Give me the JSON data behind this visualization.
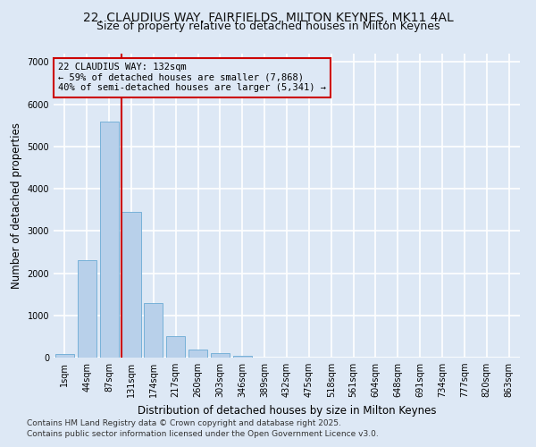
{
  "title_line1": "22, CLAUDIUS WAY, FAIRFIELDS, MILTON KEYNES, MK11 4AL",
  "title_line2": "Size of property relative to detached houses in Milton Keynes",
  "xlabel": "Distribution of detached houses by size in Milton Keynes",
  "ylabel": "Number of detached properties",
  "categories": [
    "1sqm",
    "44sqm",
    "87sqm",
    "131sqm",
    "174sqm",
    "217sqm",
    "260sqm",
    "303sqm",
    "346sqm",
    "389sqm",
    "432sqm",
    "475sqm",
    "518sqm",
    "561sqm",
    "604sqm",
    "648sqm",
    "691sqm",
    "734sqm",
    "777sqm",
    "820sqm",
    "863sqm"
  ],
  "values": [
    80,
    2300,
    5600,
    3450,
    1300,
    500,
    200,
    100,
    50,
    10,
    5,
    2,
    1,
    0,
    0,
    0,
    0,
    0,
    0,
    0,
    0
  ],
  "bar_color": "#b8d0ea",
  "bar_edgecolor": "#6aaad4",
  "vline_index": 3,
  "vline_color": "#cc0000",
  "annotation_text": "22 CLAUDIUS WAY: 132sqm\n← 59% of detached houses are smaller (7,868)\n40% of semi-detached houses are larger (5,341) →",
  "ylim": [
    0,
    7200
  ],
  "background_color": "#dde8f5",
  "grid_color": "#ffffff",
  "footnote1": "Contains HM Land Registry data © Crown copyright and database right 2025.",
  "footnote2": "Contains public sector information licensed under the Open Government Licence v3.0.",
  "title_fontsize": 10,
  "subtitle_fontsize": 9,
  "axis_label_fontsize": 8.5,
  "tick_fontsize": 7,
  "annotation_fontsize": 7.5,
  "footnote_fontsize": 6.5
}
